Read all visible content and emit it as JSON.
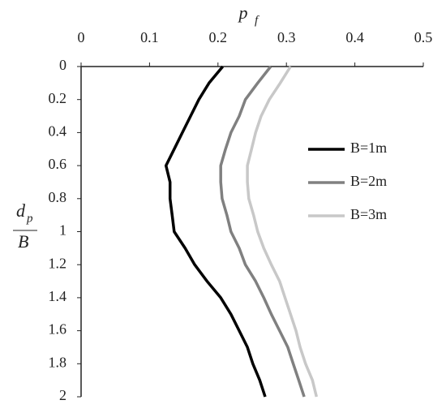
{
  "chart_data": {
    "type": "line",
    "xlabel": "p",
    "xlabel_sub": "f",
    "ylabel_num": "d",
    "ylabel_num_sub": "p",
    "ylabel_den": "B",
    "y": [
      0,
      0.1,
      0.2,
      0.3,
      0.4,
      0.5,
      0.6,
      0.7,
      0.8,
      0.9,
      1,
      1.1,
      1.2,
      1.3,
      1.4,
      1.5,
      1.6,
      1.7,
      1.8,
      1.9,
      2
    ],
    "series": [
      {
        "name": "B=1m",
        "color": "#000000",
        "values": [
          0.207,
          0.187,
          0.172,
          0.16,
          0.148,
          0.136,
          0.124,
          0.13,
          0.13,
          0.133,
          0.136,
          0.152,
          0.166,
          0.184,
          0.204,
          0.219,
          0.231,
          0.243,
          0.251,
          0.261,
          0.269
        ]
      },
      {
        "name": "B=2m",
        "color": "#808080",
        "values": [
          0.277,
          0.258,
          0.24,
          0.231,
          0.219,
          0.211,
          0.204,
          0.204,
          0.206,
          0.213,
          0.219,
          0.231,
          0.24,
          0.255,
          0.267,
          0.278,
          0.29,
          0.302,
          0.31,
          0.318,
          0.326
        ]
      },
      {
        "name": "B=3m",
        "color": "#c8c8c8",
        "values": [
          0.306,
          0.291,
          0.275,
          0.263,
          0.255,
          0.249,
          0.243,
          0.243,
          0.245,
          0.252,
          0.258,
          0.267,
          0.278,
          0.29,
          0.298,
          0.306,
          0.314,
          0.32,
          0.328,
          0.338,
          0.344
        ]
      }
    ],
    "xlim": [
      0,
      0.5
    ],
    "xticks": [
      0,
      0.1,
      0.2,
      0.3,
      0.4,
      0.5
    ],
    "ylim": [
      0,
      2
    ],
    "yticks": [
      0,
      0.2,
      0.4,
      0.6,
      0.8,
      1,
      1.2,
      1.4,
      1.6,
      1.8,
      2
    ],
    "y_reversed": true,
    "x_axis_position": "top",
    "legend": "right"
  }
}
